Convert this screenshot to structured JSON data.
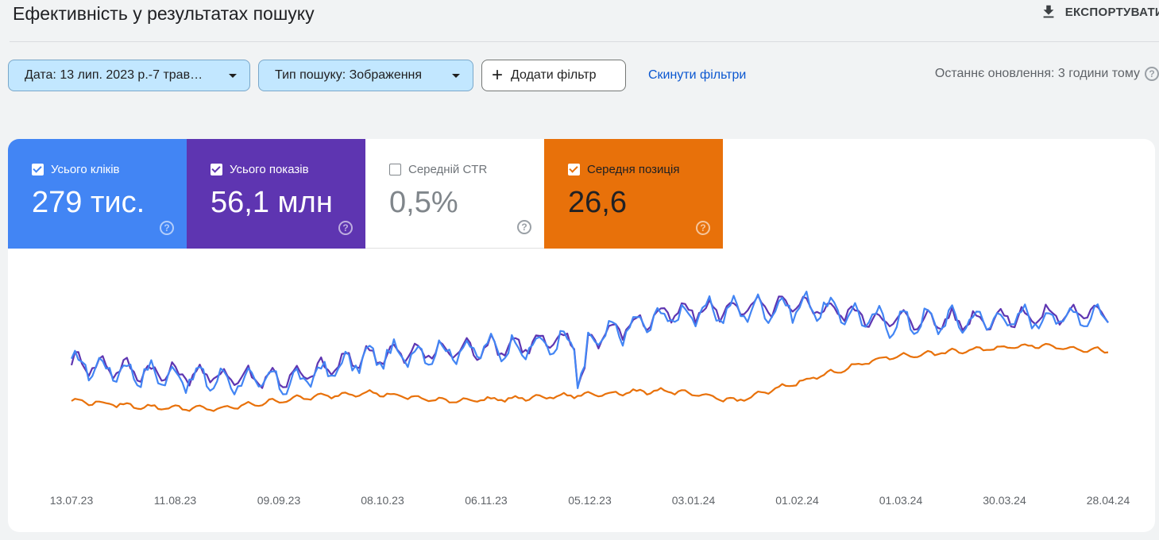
{
  "page": {
    "title": "Ефективність у результатах пошуку",
    "export_label": "ЕКСПОРТУВАТИ",
    "export_icon": "download-icon"
  },
  "filters": {
    "date_label": "Дата: 13 лип. 2023 р.-7 трав…",
    "type_label": "Тип пошуку: Зображення",
    "add_filter_label": "Додати фільтр",
    "reset_label": "Скинути фільтри",
    "last_update": "Останнє оновлення: 3 години тому"
  },
  "metrics": [
    {
      "label": "Усього кліків",
      "value": "279 тис.",
      "checked": true,
      "color": "#4285f4"
    },
    {
      "label": "Усього показів",
      "value": "56,1 млн",
      "checked": true,
      "color": "#5e35b1"
    },
    {
      "label": "Середній CTR",
      "value": "0,5%",
      "checked": false,
      "color": "#ffffff"
    },
    {
      "label": "Середня позиція",
      "value": "26,6",
      "checked": true,
      "color": "#e8710a"
    }
  ],
  "chart_data": {
    "type": "line",
    "x_ticks": [
      "13.07.23",
      "11.08.23",
      "09.09.23",
      "08.10.23",
      "06.11.23",
      "05.12.23",
      "03.01.24",
      "01.02.24",
      "01.03.24",
      "30.03.24",
      "28.04.24"
    ],
    "y_axis_visible": false,
    "grid": false,
    "series": [
      {
        "name": "Усього кліків",
        "color": "#4285f4",
        "trend": [
          0.52,
          0.47,
          0.44,
          0.43,
          0.55,
          0.58,
          0.6,
          0.63,
          0.75,
          0.78,
          0.8,
          0.72,
          0.73,
          0.74,
          0.76
        ],
        "weekly_amplitude": 0.05
      },
      {
        "name": "Усього показів",
        "color": "#5e35b1",
        "trend": [
          0.53,
          0.48,
          0.46,
          0.45,
          0.56,
          0.58,
          0.61,
          0.64,
          0.76,
          0.79,
          0.8,
          0.73,
          0.73,
          0.75,
          0.77
        ],
        "weekly_amplitude": 0.04
      },
      {
        "name": "Середня позиція",
        "color": "#e8710a",
        "trend": [
          0.34,
          0.31,
          0.3,
          0.35,
          0.38,
          0.34,
          0.35,
          0.37,
          0.39,
          0.34,
          0.45,
          0.55,
          0.58,
          0.61,
          0.58
        ],
        "weekly_amplitude": 0.01
      }
    ]
  }
}
